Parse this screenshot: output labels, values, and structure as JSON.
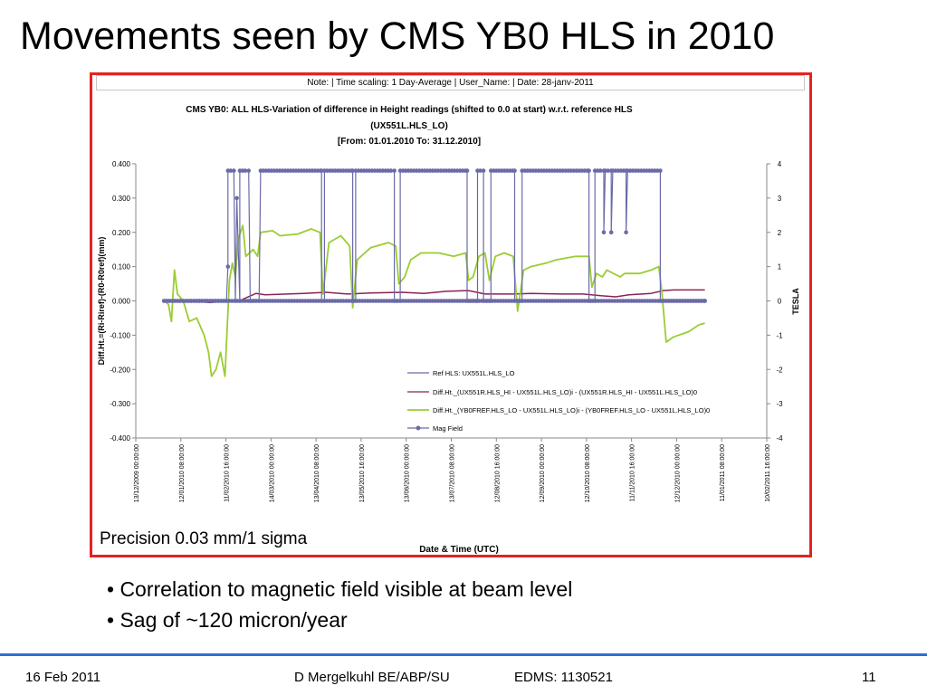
{
  "slide": {
    "title": "Movements seen by CMS YB0 HLS in 2010",
    "note": "Note:  |  Time scaling: 1 Day-Average    | User_Name:     |  Date: 28-janv-2011",
    "precision": "Precision 0.03 mm/1 sigma",
    "bullets": [
      "• Correlation to magnetic field visible at beam level",
      "• Sag of ~120 micron/year"
    ],
    "footer": {
      "date": "16 Feb 2011",
      "author": "D Mergelkuhl BE/ABP/SU",
      "edms": "EDMS: 1130521",
      "page": "11"
    }
  },
  "chart_data": {
    "type": "line",
    "title_lines": [
      "CMS YB0: ALL HLS-Variation of difference in Height readings (shifted to 0.0 at start) w.r.t. reference HLS",
      "(UX551L.HLS_LO)",
      "[From: 01.01.2010 To: 31.12.2010]"
    ],
    "xlabel": "Date & Time (UTC)",
    "ylabel": "Diff.Ht.=(Ri-Riref)-(R0-R0ref)(mm)",
    "y2label": "TESLA",
    "ylim": [
      -0.4,
      0.4
    ],
    "y2lim": [
      -4,
      4
    ],
    "yticks": [
      "0.400",
      "0.300",
      "0.200",
      "0.100",
      "0.000",
      "-0.100",
      "-0.200",
      "-0.300",
      "-0.400"
    ],
    "y2ticks": [
      "4",
      "3",
      "2",
      "1",
      "0",
      "-1",
      "-2",
      "-3",
      "-4"
    ],
    "xticks": [
      "13/12/2009 00:00:00",
      "12/01/2010 08:00:00",
      "11/02/2010 16:00:00",
      "14/03/2010 00:00:00",
      "13/04/2010 08:00:00",
      "13/05/2010 16:00:00",
      "13/06/2010 00:00:00",
      "13/07/2010 08:00:00",
      "12/08/2010 16:00:00",
      "12/09/2010 00:00:00",
      "12/10/2010 08:00:00",
      "11/11/2010 16:00:00",
      "12/12/2010 00:00:00",
      "11/01/2011 08:00:00",
      "10/02/2011 16:00:00"
    ],
    "legend_position": "bottom-right",
    "series": [
      {
        "name": "Ref HLS: UX551L.HLS_LO",
        "color": "#6a6aa8",
        "axis": "left",
        "points": [
          [
            "2010-01-01",
            0.0
          ],
          [
            "2010-12-31",
            0.0
          ]
        ]
      },
      {
        "name": "Diff.Ht._(UX551R.HLS_HI - UX551L.HLS_LO)i - (UX551R.HLS_HI - UX551L.HLS_LO)0",
        "color": "#8b2352",
        "axis": "left",
        "points": [
          [
            "2010-01-01",
            0.0
          ],
          [
            "2010-01-20",
            0.0
          ],
          [
            "2010-02-01",
            -0.005
          ],
          [
            "2010-02-12",
            0.0
          ],
          [
            "2010-02-22",
            0.003
          ],
          [
            "2010-03-04",
            0.022
          ],
          [
            "2010-03-10",
            0.018
          ],
          [
            "2010-04-05",
            0.022
          ],
          [
            "2010-04-20",
            0.025
          ],
          [
            "2010-05-05",
            0.02
          ],
          [
            "2010-05-20",
            0.023
          ],
          [
            "2010-06-10",
            0.025
          ],
          [
            "2010-06-25",
            0.022
          ],
          [
            "2010-07-10",
            0.028
          ],
          [
            "2010-07-25",
            0.03
          ],
          [
            "2010-08-05",
            0.02
          ],
          [
            "2010-08-25",
            0.02
          ],
          [
            "2010-09-05",
            0.022
          ],
          [
            "2010-09-25",
            0.02
          ],
          [
            "2010-10-10",
            0.02
          ],
          [
            "2010-10-22",
            0.015
          ],
          [
            "2010-11-01",
            0.012
          ],
          [
            "2010-11-10",
            0.018
          ],
          [
            "2010-11-25",
            0.022
          ],
          [
            "2010-12-03",
            0.03
          ],
          [
            "2010-12-10",
            0.032
          ],
          [
            "2010-12-31",
            0.032
          ]
        ]
      },
      {
        "name": "Diff.Ht._(YB0FREF.HLS_LO - UX551L.HLS_LO)i - (YB0FREF.HLS_LO - UX551L.HLS_LO)0",
        "color": "#9acd32",
        "axis": "left",
        "points": [
          [
            "2010-01-01",
            0.0
          ],
          [
            "2010-01-04",
            -0.01
          ],
          [
            "2010-01-06",
            -0.06
          ],
          [
            "2010-01-08",
            0.09
          ],
          [
            "2010-01-10",
            0.02
          ],
          [
            "2010-01-14",
            0.0
          ],
          [
            "2010-01-18",
            -0.06
          ],
          [
            "2010-01-23",
            -0.05
          ],
          [
            "2010-01-28",
            -0.1
          ],
          [
            "2010-01-31",
            -0.15
          ],
          [
            "2010-02-02",
            -0.22
          ],
          [
            "2010-02-05",
            -0.2
          ],
          [
            "2010-02-08",
            -0.15
          ],
          [
            "2010-02-11",
            -0.22
          ],
          [
            "2010-02-14",
            0.06
          ],
          [
            "2010-02-16",
            0.11
          ],
          [
            "2010-02-18",
            0.07
          ],
          [
            "2010-02-20",
            0.18
          ],
          [
            "2010-02-23",
            0.22
          ],
          [
            "2010-02-25",
            0.13
          ],
          [
            "2010-03-02",
            0.15
          ],
          [
            "2010-03-05",
            0.13
          ],
          [
            "2010-03-07",
            0.2
          ],
          [
            "2010-03-15",
            0.205
          ],
          [
            "2010-03-20",
            0.19
          ],
          [
            "2010-04-01",
            0.195
          ],
          [
            "2010-04-10",
            0.21
          ],
          [
            "2010-04-16",
            0.2
          ],
          [
            "2010-04-18",
            0.02
          ],
          [
            "2010-04-22",
            0.17
          ],
          [
            "2010-04-30",
            0.19
          ],
          [
            "2010-05-06",
            0.16
          ],
          [
            "2010-05-08",
            -0.02
          ],
          [
            "2010-05-11",
            0.12
          ],
          [
            "2010-05-20",
            0.155
          ],
          [
            "2010-06-01",
            0.17
          ],
          [
            "2010-06-06",
            0.16
          ],
          [
            "2010-06-08",
            0.05
          ],
          [
            "2010-06-12",
            0.07
          ],
          [
            "2010-06-16",
            0.12
          ],
          [
            "2010-06-23",
            0.14
          ],
          [
            "2010-07-05",
            0.14
          ],
          [
            "2010-07-15",
            0.13
          ],
          [
            "2010-07-23",
            0.14
          ],
          [
            "2010-07-25",
            0.06
          ],
          [
            "2010-07-28",
            0.07
          ],
          [
            "2010-08-01",
            0.13
          ],
          [
            "2010-08-05",
            0.14
          ],
          [
            "2010-08-08",
            0.06
          ],
          [
            "2010-08-12",
            0.13
          ],
          [
            "2010-08-18",
            0.14
          ],
          [
            "2010-08-24",
            0.13
          ],
          [
            "2010-08-27",
            -0.03
          ],
          [
            "2010-08-31",
            0.09
          ],
          [
            "2010-09-05",
            0.1
          ],
          [
            "2010-09-15",
            0.11
          ],
          [
            "2010-09-22",
            0.12
          ],
          [
            "2010-10-05",
            0.13
          ],
          [
            "2010-10-14",
            0.13
          ],
          [
            "2010-10-16",
            0.04
          ],
          [
            "2010-10-19",
            0.08
          ],
          [
            "2010-10-23",
            0.07
          ],
          [
            "2010-10-26",
            0.09
          ],
          [
            "2010-11-04",
            0.07
          ],
          [
            "2010-11-07",
            0.08
          ],
          [
            "2010-11-17",
            0.08
          ],
          [
            "2010-11-25",
            0.09
          ],
          [
            "2010-11-30",
            0.1
          ],
          [
            "2010-12-02",
            0.03
          ],
          [
            "2010-12-05",
            -0.12
          ],
          [
            "2010-12-10",
            -0.105
          ],
          [
            "2010-12-20",
            -0.09
          ],
          [
            "2010-12-27",
            -0.07
          ],
          [
            "2010-12-31",
            -0.065
          ]
        ]
      },
      {
        "name": "Mag Field",
        "color": "#6a6aa8",
        "axis": "right",
        "points": [
          [
            "2010-01-01",
            0
          ],
          [
            "2010-02-12",
            0
          ],
          [
            "2010-02-13",
            1
          ],
          [
            "2010-02-13",
            3.8
          ],
          [
            "2010-02-17",
            3.8
          ],
          [
            "2010-02-18",
            0
          ],
          [
            "2010-02-19",
            3
          ],
          [
            "2010-02-21",
            0
          ],
          [
            "2010-02-21",
            3.8
          ],
          [
            "2010-02-27",
            3.8
          ],
          [
            "2010-02-28",
            0
          ],
          [
            "2010-03-06",
            0
          ],
          [
            "2010-03-07",
            3.8
          ],
          [
            "2010-04-17",
            3.8
          ],
          [
            "2010-04-17",
            0
          ],
          [
            "2010-04-19",
            0
          ],
          [
            "2010-04-19",
            3.8
          ],
          [
            "2010-05-08",
            3.8
          ],
          [
            "2010-05-08",
            0
          ],
          [
            "2010-05-10",
            0
          ],
          [
            "2010-05-10",
            3.8
          ],
          [
            "2010-06-05",
            3.8
          ],
          [
            "2010-06-05",
            0
          ],
          [
            "2010-06-09",
            0
          ],
          [
            "2010-06-09",
            3.8
          ],
          [
            "2010-07-24",
            3.8
          ],
          [
            "2010-07-24",
            0
          ],
          [
            "2010-07-31",
            0
          ],
          [
            "2010-07-31",
            3.8
          ],
          [
            "2010-08-04",
            3.8
          ],
          [
            "2010-08-04",
            0
          ],
          [
            "2010-08-09",
            0
          ],
          [
            "2010-08-09",
            3.8
          ],
          [
            "2010-08-25",
            3.8
          ],
          [
            "2010-08-25",
            0
          ],
          [
            "2010-08-30",
            0
          ],
          [
            "2010-08-30",
            3.8
          ],
          [
            "2010-10-14",
            3.8
          ],
          [
            "2010-10-14",
            0
          ],
          [
            "2010-10-18",
            0
          ],
          [
            "2010-10-18",
            3.8
          ],
          [
            "2010-10-24",
            3.8
          ],
          [
            "2010-10-24",
            2
          ],
          [
            "2010-10-25",
            3.8
          ],
          [
            "2010-10-29",
            3.8
          ],
          [
            "2010-10-29",
            2
          ],
          [
            "2010-10-30",
            3.8
          ],
          [
            "2010-11-08",
            3.8
          ],
          [
            "2010-11-08",
            2
          ],
          [
            "2010-11-09",
            3.8
          ],
          [
            "2010-12-01",
            3.8
          ],
          [
            "2010-12-01",
            0
          ],
          [
            "2010-12-31",
            0
          ]
        ]
      }
    ]
  }
}
